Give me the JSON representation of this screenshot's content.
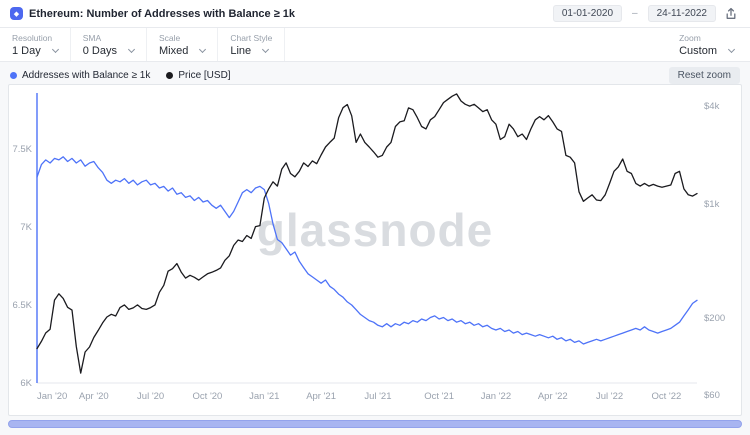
{
  "header": {
    "title": "Ethereum: Number of Addresses with Balance ≥ 1k",
    "date_from": "01-01-2020",
    "date_separator": "–",
    "date_to": "24-11-2022"
  },
  "toolbar": {
    "groups": [
      {
        "label": "Resolution",
        "value": "1 Day"
      },
      {
        "label": "SMA",
        "value": "0 Days"
      },
      {
        "label": "Scale",
        "value": "Mixed"
      },
      {
        "label": "Chart Style",
        "value": "Line"
      }
    ],
    "zoom_label": "Zoom",
    "zoom_value": "Custom"
  },
  "legend": {
    "reset_zoom": "Reset zoom"
  },
  "watermark": "glassnode",
  "chart_data": {
    "type": "line",
    "title": "Ethereum: Number of Addresses with Balance ≥ 1k",
    "x_range": [
      "01-01-2020",
      "24-11-2022"
    ],
    "x_ticks": [
      {
        "label": "Jan '20",
        "pos": 0
      },
      {
        "label": "Apr '20",
        "pos": 13
      },
      {
        "label": "Jul '20",
        "pos": 26
      },
      {
        "label": "Oct '20",
        "pos": 39
      },
      {
        "label": "Jan '21",
        "pos": 52
      },
      {
        "label": "Apr '21",
        "pos": 65
      },
      {
        "label": "Jul '21",
        "pos": 78
      },
      {
        "label": "Oct '21",
        "pos": 92
      },
      {
        "label": "Jan '22",
        "pos": 105
      },
      {
        "label": "Apr '22",
        "pos": 118
      },
      {
        "label": "Jul '22",
        "pos": 131
      },
      {
        "label": "Oct '22",
        "pos": 144
      }
    ],
    "left_axis": {
      "type": "linear",
      "min": 6.0,
      "max": 7.859,
      "ticks": [
        {
          "value": 7.5,
          "label": "7.5K"
        },
        {
          "value": 7.0,
          "label": "7K"
        },
        {
          "value": 6.5,
          "label": "6.5K"
        },
        {
          "value": 6.0,
          "label": "6K"
        }
      ]
    },
    "right_axis": {
      "type": "log",
      "min": 80,
      "max": 4800,
      "ticks": [
        {
          "value": 4000,
          "label": "$4k"
        },
        {
          "value": 1000,
          "label": "$1k"
        },
        {
          "value": 200,
          "label": "$200"
        },
        {
          "value": 60,
          "label": "$60"
        }
      ]
    },
    "series": [
      {
        "name": "Addresses with Balance ≥ 1k",
        "axis": "left",
        "unit": "K addresses",
        "color": "#4e73f8",
        "values": [
          7.32,
          7.4,
          7.43,
          7.41,
          7.44,
          7.43,
          7.45,
          7.42,
          7.44,
          7.41,
          7.43,
          7.39,
          7.41,
          7.42,
          7.38,
          7.35,
          7.3,
          7.28,
          7.3,
          7.29,
          7.31,
          7.28,
          7.3,
          7.27,
          7.29,
          7.3,
          7.27,
          7.28,
          7.25,
          7.26,
          7.23,
          7.25,
          7.21,
          7.22,
          7.19,
          7.2,
          7.17,
          7.19,
          7.16,
          7.17,
          7.14,
          7.12,
          7.14,
          7.1,
          7.06,
          7.1,
          7.16,
          7.22,
          7.24,
          7.22,
          7.25,
          7.26,
          7.24,
          7.15,
          7.02,
          6.92,
          6.9,
          6.86,
          6.82,
          6.84,
          6.78,
          6.74,
          6.7,
          6.68,
          6.66,
          6.64,
          6.66,
          6.62,
          6.6,
          6.57,
          6.55,
          6.52,
          6.5,
          6.47,
          6.44,
          6.42,
          6.4,
          6.39,
          6.37,
          6.36,
          6.38,
          6.36,
          6.38,
          6.37,
          6.39,
          6.38,
          6.4,
          6.39,
          6.41,
          6.4,
          6.42,
          6.43,
          6.41,
          6.42,
          6.4,
          6.41,
          6.39,
          6.4,
          6.38,
          6.39,
          6.37,
          6.38,
          6.36,
          6.37,
          6.35,
          6.34,
          6.35,
          6.33,
          6.34,
          6.32,
          6.33,
          6.31,
          6.32,
          6.31,
          6.3,
          6.31,
          6.3,
          6.29,
          6.3,
          6.28,
          6.29,
          6.27,
          6.28,
          6.26,
          6.27,
          6.25,
          6.26,
          6.27,
          6.28,
          6.27,
          6.28,
          6.29,
          6.3,
          6.31,
          6.32,
          6.33,
          6.34,
          6.35,
          6.34,
          6.36,
          6.34,
          6.33,
          6.32,
          6.33,
          6.34,
          6.35,
          6.37,
          6.39,
          6.43,
          6.47,
          6.51,
          6.53
        ]
      },
      {
        "name": "Price [USD]",
        "axis": "right",
        "unit": "USD",
        "color": "#1b1b1f",
        "values": [
          130,
          144,
          162,
          171,
          258,
          282,
          264,
          233,
          224,
          134,
          92,
          124,
          133,
          152,
          168,
          187,
          203,
          211,
          206,
          232,
          241,
          226,
          231,
          241,
          229,
          226,
          232,
          241,
          288,
          318,
          388,
          402,
          432,
          383,
          352,
          366,
          356,
          342,
          358,
          374,
          382,
          392,
          406,
          452,
          482,
          558,
          602,
          590,
          642,
          616,
          728,
          738,
          1090,
          1240,
          1370,
          1290,
          1640,
          1790,
          1540,
          1470,
          1590,
          1790,
          1700,
          1840,
          1770,
          2000,
          2240,
          2390,
          2540,
          3380,
          3900,
          4080,
          3480,
          2390,
          2690,
          2390,
          2240,
          2090,
          1940,
          1990,
          2240,
          2390,
          2990,
          3190,
          3240,
          3890,
          3790,
          3390,
          2990,
          2890,
          3290,
          3440,
          3790,
          4190,
          4390,
          4590,
          4740,
          4290,
          4090,
          3990,
          4090,
          3890,
          3690,
          3790,
          3290,
          3090,
          2490,
          2590,
          3090,
          2890,
          2590,
          2690,
          2490,
          2890,
          3290,
          3440,
          3290,
          3490,
          3190,
          2890,
          2790,
          1990,
          1940,
          1790,
          1190,
          1040,
          1090,
          1140,
          1060,
          1050,
          1140,
          1340,
          1590,
          1690,
          1890,
          1590,
          1540,
          1340,
          1290,
          1340,
          1290,
          1320,
          1290,
          1270,
          1290,
          1310,
          1540,
          1590,
          1240,
          1140,
          1120,
          1160
        ]
      }
    ],
    "legend_position": "top-left",
    "grid": false
  }
}
